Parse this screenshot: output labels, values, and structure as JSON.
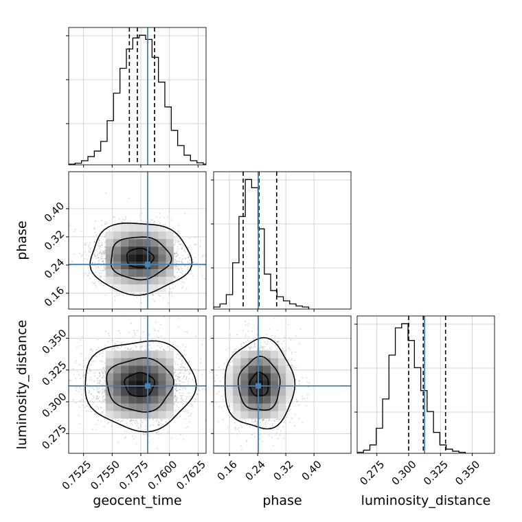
{
  "chart_data": {
    "type": "corner",
    "truth_color": "#4682b4",
    "parameters": [
      {
        "name": "geocent_time",
        "label": "geocent_time",
        "range": [
          0.7512,
          0.7632
        ],
        "ticks": [
          0.7525,
          0.755,
          0.7575,
          0.76,
          0.7625
        ],
        "tick_labels": [
          "0.7525",
          "0.7550",
          "0.7575",
          "0.7600",
          "0.7625"
        ],
        "truth": 0.7581,
        "quantiles": [
          0.7565,
          0.7572,
          0.7587
        ],
        "hist": {
          "start": 0.7512,
          "width": 0.00056,
          "values": [
            0.5,
            1.2,
            3,
            6,
            10,
            17,
            32,
            52,
            70,
            84,
            92,
            94,
            91,
            78,
            60,
            42,
            25,
            14,
            7,
            3,
            1.5,
            0.5
          ]
        }
      },
      {
        "name": "phase",
        "label": "phase",
        "range": [
          0.115,
          0.505
        ],
        "ticks": [
          0.16,
          0.24,
          0.32,
          0.4
        ],
        "tick_labels": [
          "0.16",
          "0.24",
          "0.32",
          "0.40"
        ],
        "truth": 0.242,
        "quantiles": [
          0.199,
          0.244,
          0.294
        ],
        "hist": {
          "start": 0.115,
          "width": 0.018,
          "values": [
            2,
            5,
            14,
            45,
            90,
            126,
            118,
            78,
            34,
            18,
            12,
            8,
            5,
            3,
            2
          ]
        }
      },
      {
        "name": "luminosity_distance",
        "label": "luminosity_distance",
        "range": [
          0.2595,
          0.3675
        ],
        "ticks": [
          0.275,
          0.3,
          0.325,
          0.35
        ],
        "tick_labels": [
          "0.275",
          "0.300",
          "0.325",
          "0.350"
        ],
        "truth": 0.3125,
        "quantiles": [
          0.3,
          0.3115,
          0.329
        ],
        "hist": {
          "start": 0.2595,
          "width": 0.005,
          "values": [
            0.5,
            1.5,
            4,
            12,
            26,
            47,
            60,
            62,
            54,
            41,
            30,
            20,
            10,
            4,
            2,
            1,
            0.5
          ]
        }
      }
    ],
    "pairs": [
      {
        "x": "geocent_time",
        "y": "phase",
        "center": [
          0.7574,
          0.26
        ],
        "sigma": [
          0.0019,
          0.044
        ],
        "contour_levels": [
          0.12,
          0.47,
          0.86
        ]
      },
      {
        "x": "geocent_time",
        "y": "luminosity_distance",
        "center": [
          0.7574,
          0.3135
        ],
        "sigma": [
          0.0021,
          0.0152
        ],
        "contour_levels": [
          0.12,
          0.47,
          0.86
        ]
      },
      {
        "x": "phase",
        "y": "luminosity_distance",
        "center": [
          0.245,
          0.3135
        ],
        "sigma": [
          0.043,
          0.0152
        ],
        "contour_levels": [
          0.12,
          0.47,
          0.86
        ]
      }
    ]
  }
}
